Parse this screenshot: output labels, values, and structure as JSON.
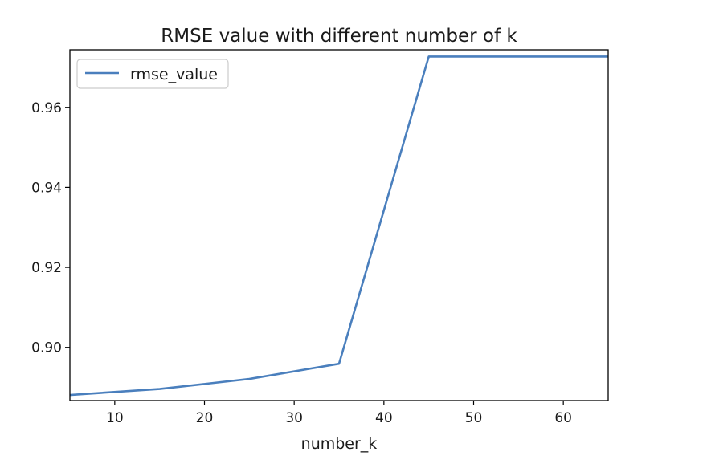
{
  "chart_data": {
    "type": "line",
    "title": "RMSE value with different number of k",
    "xlabel": "number_k",
    "ylabel": "",
    "x": [
      5,
      15,
      25,
      35,
      45,
      55,
      65
    ],
    "series": [
      {
        "name": "rmse_value",
        "values": [
          0.8881,
          0.8896,
          0.8921,
          0.8959,
          0.9727,
          0.9727,
          0.9727
        ],
        "color": "#4a7fbd"
      }
    ],
    "xlim": [
      5,
      65
    ],
    "ylim": [
      0.8867,
      0.9744
    ],
    "xticks": [
      10,
      20,
      30,
      40,
      50,
      60
    ],
    "yticks": [
      0.9,
      0.92,
      0.94,
      0.96
    ],
    "xtick_labels": [
      "10",
      "20",
      "30",
      "40",
      "50",
      "60"
    ],
    "ytick_labels": [
      "0.90",
      "0.92",
      "0.94",
      "0.96"
    ],
    "grid": false,
    "legend_position": "top-left"
  }
}
